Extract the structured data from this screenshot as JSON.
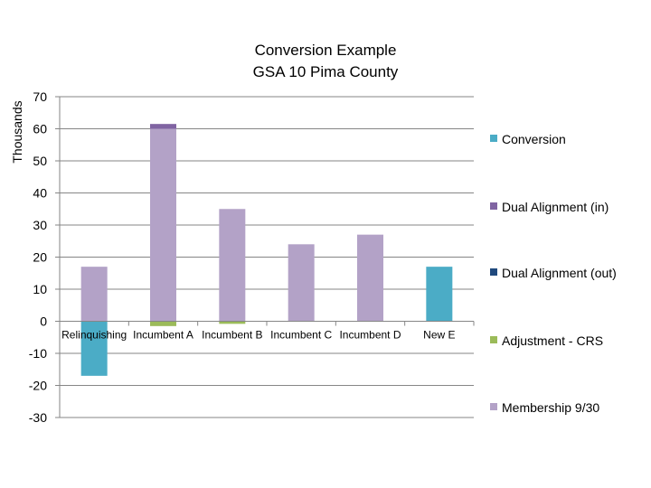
{
  "chart_data": {
    "type": "bar",
    "stacked": true,
    "title": [
      "Conversion Example",
      "GSA 10 Pima County"
    ],
    "xlabel": "",
    "ylabel": "Thousands",
    "ylim": [
      -30,
      70
    ],
    "yticks": [
      70,
      60,
      50,
      40,
      30,
      20,
      10,
      0,
      -10,
      -20,
      -30
    ],
    "ytick_labels": [
      "70",
      "60",
      "50",
      "40",
      "30",
      "20",
      "10",
      "0",
      "-10",
      "-20",
      "-30"
    ],
    "categories": [
      "Relinquishing",
      "Incumbent A",
      "Incumbent B",
      "Incumbent C",
      "Incumbent D",
      "New E"
    ],
    "series": [
      {
        "name": "Membership 9/30",
        "color": "#b3a2c7",
        "values": [
          17,
          60,
          35,
          24,
          27,
          0
        ]
      },
      {
        "name": "Adjustment - CRS",
        "color": "#9bbb59",
        "values": [
          0,
          -1.5,
          -0.8,
          0,
          0,
          0
        ]
      },
      {
        "name": "Dual Alignment (out)",
        "color": "#1f497d",
        "values": [
          0,
          0,
          0,
          0,
          0,
          0
        ]
      },
      {
        "name": "Dual Alignment (in)",
        "color": "#8064a2",
        "values": [
          0,
          1.5,
          0,
          0,
          0,
          0
        ]
      },
      {
        "name": "Conversion",
        "color": "#4bacc6",
        "values": [
          -17,
          0,
          0,
          0,
          0,
          17
        ]
      }
    ],
    "legend": {
      "placement": "right",
      "order": [
        "Conversion",
        "Dual Alignment (in)",
        "Dual Alignment (out)",
        "Adjustment - CRS",
        "Membership 9/30"
      ]
    },
    "gridlines": true,
    "axis_color": "#868686"
  }
}
